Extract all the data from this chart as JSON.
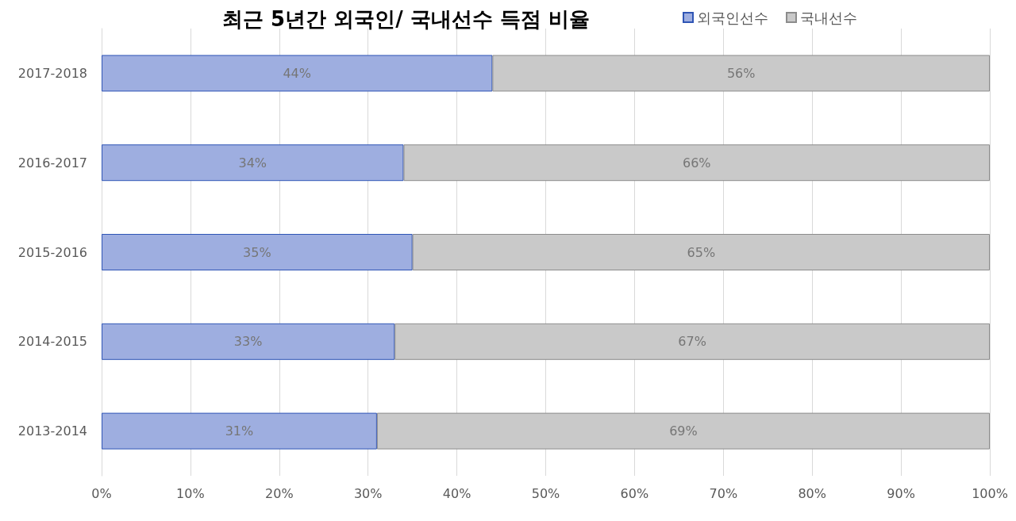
{
  "chart_data": {
    "type": "bar",
    "title": "최근 5년간 외국인/ 국내선수 득점 비율",
    "orientation": "horizontal",
    "stacked": true,
    "categories": [
      "2017-2018",
      "2016-2017",
      "2015-2016",
      "2014-2015",
      "2013-2014"
    ],
    "series": [
      {
        "name": "외국인선수",
        "color": "#9eaee0",
        "values": [
          44,
          34,
          35,
          33,
          31
        ],
        "value_labels": [
          "44%",
          "34%",
          "35%",
          "33%",
          "31%"
        ]
      },
      {
        "name": "국내선수",
        "color": "#c9c9c9",
        "values": [
          56,
          66,
          65,
          67,
          69
        ],
        "value_labels": [
          "56%",
          "66%",
          "65%",
          "67%",
          "69%"
        ]
      }
    ],
    "xlim": [
      0,
      100
    ],
    "xticks": [
      {
        "value": 0,
        "label": "0%"
      },
      {
        "value": 10,
        "label": "10%"
      },
      {
        "value": 20,
        "label": "20%"
      },
      {
        "value": 30,
        "label": "30%"
      },
      {
        "value": 40,
        "label": "40%"
      },
      {
        "value": 50,
        "label": "50%"
      },
      {
        "value": 60,
        "label": "60%"
      },
      {
        "value": 70,
        "label": "70%"
      },
      {
        "value": 80,
        "label": "80%"
      },
      {
        "value": 90,
        "label": "90%"
      },
      {
        "value": 100,
        "label": "100%"
      }
    ],
    "grid": "x",
    "legend": "top right"
  }
}
